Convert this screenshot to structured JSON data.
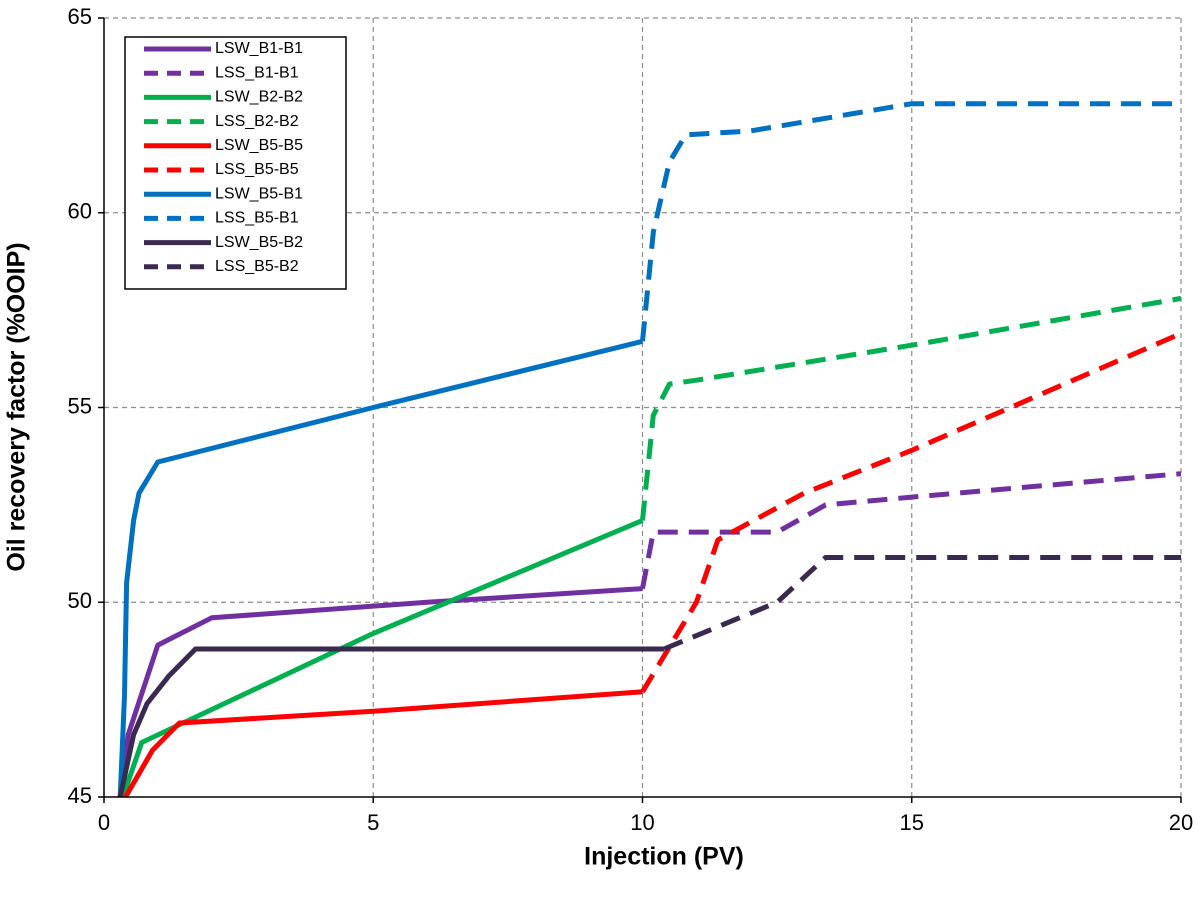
{
  "chart_data": {
    "type": "line",
    "title": "",
    "xlabel": "Injection (PV)",
    "ylabel": "Oil recovery factor (%OOIP)",
    "xlim": [
      0,
      20
    ],
    "ylim": [
      45,
      65
    ],
    "xticks": [
      0,
      5,
      10,
      15,
      20
    ],
    "yticks": [
      45,
      50,
      55,
      60,
      65
    ],
    "grid": true,
    "legend_position": "top-left",
    "series": [
      {
        "name": "LSW_B1-B1",
        "color": "#7030A0",
        "style": "solid",
        "points": [
          [
            0.3,
            45
          ],
          [
            0.45,
            46.6
          ],
          [
            1.0,
            48.9
          ],
          [
            2.0,
            49.6
          ],
          [
            6.0,
            50.0
          ],
          [
            10.0,
            50.35
          ]
        ]
      },
      {
        "name": "LSS_B1-B1",
        "color": "#7030A0",
        "style": "dashed",
        "points": [
          [
            10.0,
            50.35
          ],
          [
            10.2,
            51.8
          ],
          [
            12.5,
            51.8
          ],
          [
            13.4,
            52.5
          ],
          [
            15.0,
            52.7
          ],
          [
            20.0,
            53.3
          ]
        ]
      },
      {
        "name": "LSW_B2-B2",
        "color": "#00B050",
        "style": "solid",
        "points": [
          [
            0.35,
            45
          ],
          [
            0.7,
            46.4
          ],
          [
            5.0,
            49.2
          ],
          [
            10.0,
            52.1
          ]
        ]
      },
      {
        "name": "LSS_B2-B2",
        "color": "#00B050",
        "style": "dashed",
        "points": [
          [
            10.0,
            52.1
          ],
          [
            10.2,
            54.8
          ],
          [
            10.5,
            55.6
          ],
          [
            11.0,
            55.7
          ],
          [
            15.0,
            56.6
          ],
          [
            20.0,
            57.8
          ]
        ]
      },
      {
        "name": "LSW_B5-B5",
        "color": "#FF0000",
        "style": "solid",
        "points": [
          [
            0.4,
            45
          ],
          [
            0.9,
            46.2
          ],
          [
            1.4,
            46.9
          ],
          [
            5.0,
            47.2
          ],
          [
            10.0,
            47.7
          ]
        ]
      },
      {
        "name": "LSS_B5-B5",
        "color": "#FF0000",
        "style": "dashed",
        "points": [
          [
            10.0,
            47.7
          ],
          [
            11.0,
            50.0
          ],
          [
            11.4,
            51.6
          ],
          [
            13.0,
            52.8
          ],
          [
            15.0,
            53.9
          ],
          [
            20.0,
            56.9
          ]
        ]
      },
      {
        "name": "LSW_B5-B1",
        "color": "#0070C0",
        "style": "solid",
        "points": [
          [
            0.3,
            45
          ],
          [
            0.38,
            47.6
          ],
          [
            0.42,
            50.5
          ],
          [
            0.55,
            52.1
          ],
          [
            0.65,
            52.8
          ],
          [
            1.0,
            53.6
          ],
          [
            5.0,
            55.0
          ],
          [
            10.0,
            56.7
          ]
        ]
      },
      {
        "name": "LSS_B5-B1",
        "color": "#0070C0",
        "style": "dashed",
        "points": [
          [
            10.0,
            56.7
          ],
          [
            10.2,
            59.5
          ],
          [
            10.5,
            61.3
          ],
          [
            10.8,
            62.0
          ],
          [
            12.0,
            62.1
          ],
          [
            15.0,
            62.8
          ],
          [
            20.0,
            62.8
          ]
        ]
      },
      {
        "name": "LSW_B5-B2",
        "color": "#3B2A4F",
        "style": "solid",
        "points": [
          [
            0.3,
            45
          ],
          [
            0.55,
            46.6
          ],
          [
            0.8,
            47.4
          ],
          [
            1.2,
            48.1
          ],
          [
            1.7,
            48.8
          ],
          [
            10.4,
            48.8
          ]
        ]
      },
      {
        "name": "LSS_B5-B2",
        "color": "#3B2A4F",
        "style": "dashed",
        "points": [
          [
            10.4,
            48.8
          ],
          [
            12.5,
            50.0
          ],
          [
            13.4,
            51.15
          ],
          [
            20.0,
            51.15
          ]
        ]
      }
    ]
  }
}
